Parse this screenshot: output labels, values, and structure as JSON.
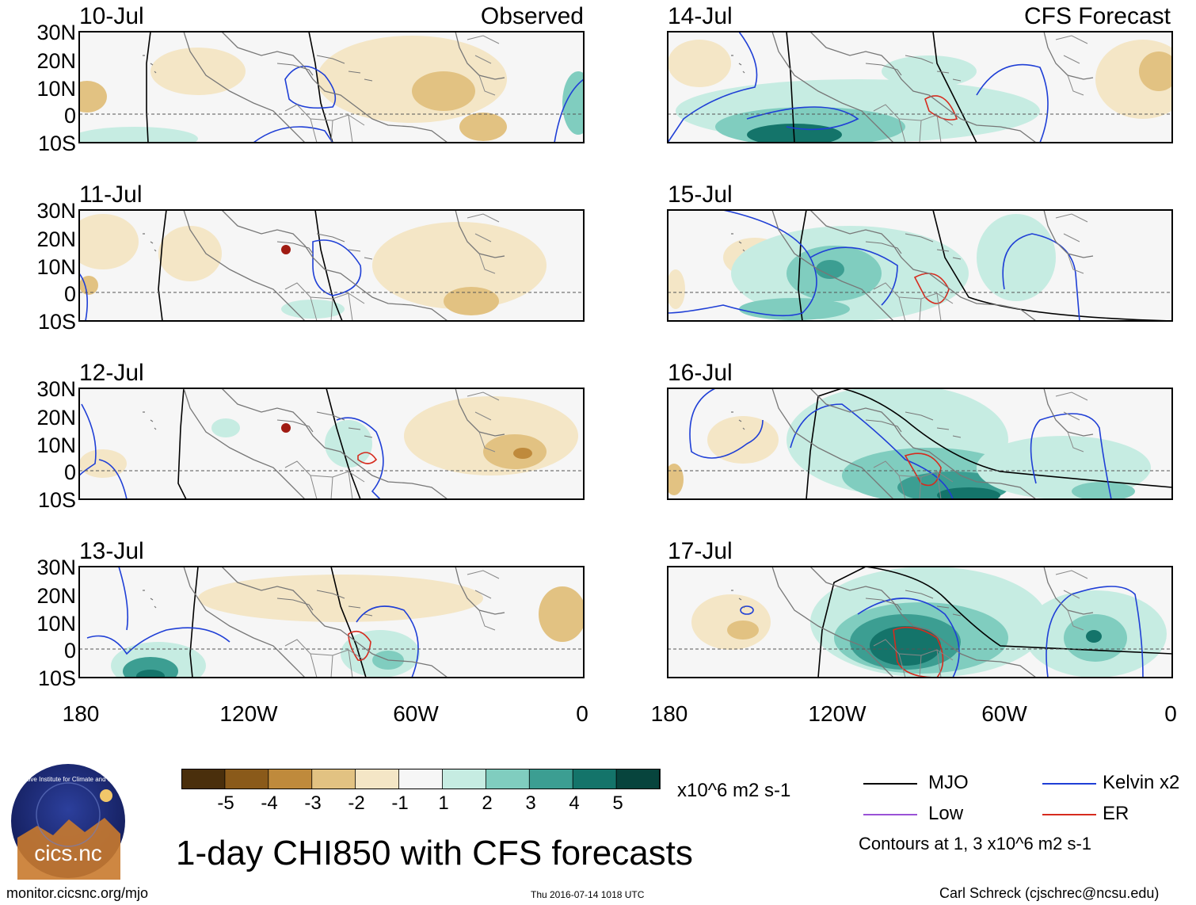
{
  "header": {
    "observed_label": "Observed",
    "forecast_label": "CFS Forecast"
  },
  "lat_labels": [
    "30N",
    "20N",
    "10N",
    "0",
    "10S"
  ],
  "lon_labels": [
    "180",
    "120W",
    "60W",
    "0"
  ],
  "panels": {
    "observed": [
      {
        "date": "10-Jul"
      },
      {
        "date": "11-Jul"
      },
      {
        "date": "12-Jul"
      },
      {
        "date": "13-Jul"
      }
    ],
    "forecast": [
      {
        "date": "14-Jul"
      },
      {
        "date": "15-Jul"
      },
      {
        "date": "16-Jul"
      },
      {
        "date": "17-Jul"
      }
    ]
  },
  "colorbar": {
    "ticks": [
      "-5",
      "-4",
      "-3",
      "-2",
      "-1",
      "1",
      "2",
      "3",
      "4",
      "5"
    ],
    "colors": [
      "#4a2f0c",
      "#8a5a1a",
      "#bf8a3c",
      "#e2c282",
      "#f4e6c6",
      "#f6f6f6",
      "#c6ece2",
      "#80cdbf",
      "#3c9e92",
      "#14746a",
      "#07443d"
    ],
    "units": "x10^6 m2 s-1"
  },
  "legend": {
    "items": [
      {
        "label": "MJO",
        "color": "#000000"
      },
      {
        "label": "Kelvin x2",
        "color": "#1f3fd6"
      },
      {
        "label": "Low",
        "color": "#9a52d6"
      },
      {
        "label": "ER",
        "color": "#d62b1e"
      }
    ],
    "contours_note": "Contours at 1, 3 x10^6 m2 s-1"
  },
  "logo": {
    "text": "cics.nc",
    "ring_text": "Cooperative Institute for Climate and Satellites"
  },
  "title": "1-day CHI850 with CFS forecasts",
  "footer": {
    "url": "monitor.cicsnc.org/mjo",
    "timestamp": "Thu 2016-07-14 1018 UTC",
    "author": "Carl Schreck (cjschrec@ncsu.edu)"
  }
}
